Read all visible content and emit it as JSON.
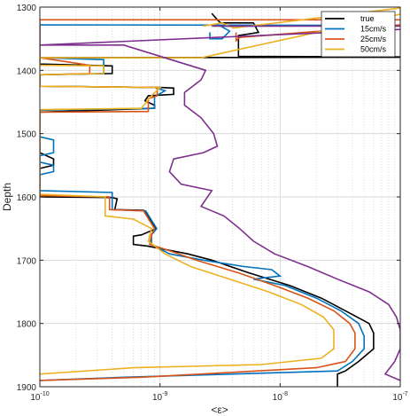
{
  "chart_data": {
    "type": "line",
    "title": "",
    "xlabel": "<ε>",
    "ylabel": "Depth",
    "xscale": "log",
    "xlim": [
      1e-10,
      1e-07
    ],
    "ylim": [
      1300,
      1900
    ],
    "y_reversed": true,
    "grid": true,
    "legend_position": "top-right",
    "x_tick_values": [
      1e-10,
      1e-09,
      1e-08,
      1e-07
    ],
    "x_tick_labels": [
      "10^-10",
      "10^-9",
      "10^-8",
      "10^-7"
    ],
    "y_ticks": [
      1300,
      1400,
      1500,
      1600,
      1700,
      1800,
      1900
    ],
    "series": [
      {
        "name": "true",
        "color": "#000000",
        "points": [
          [
            2.7e-09,
            1310
          ],
          [
            3e-09,
            1320
          ],
          [
            3.2e-09,
            1325
          ],
          [
            6e-09,
            1325
          ],
          [
            6.6e-09,
            1340
          ],
          [
            4.5e-09,
            1345
          ],
          [
            4.5e-09,
            1378
          ],
          [
            3.8e-07,
            1379
          ],
          [
            1e-10,
            1380
          ],
          [
            1e-10,
            1390
          ],
          [
            4e-10,
            1393
          ],
          [
            4e-10,
            1405
          ],
          [
            1e-10,
            1407
          ],
          [
            1e-10,
            1425
          ],
          [
            1e-09,
            1427
          ],
          [
            1.3e-09,
            1428
          ],
          [
            1.3e-09,
            1438
          ],
          [
            8e-10,
            1440
          ],
          [
            7.5e-10,
            1448
          ],
          [
            9e-10,
            1455
          ],
          [
            9e-10,
            1460
          ],
          [
            1e-10,
            1466
          ],
          [
            1e-10,
            1530
          ],
          [
            1.3e-10,
            1540
          ],
          [
            1.3e-10,
            1550
          ],
          [
            1e-10,
            1555
          ],
          [
            1e-10,
            1600
          ],
          [
            4e-10,
            1601
          ],
          [
            4.4e-10,
            1603
          ],
          [
            4.2e-10,
            1620
          ],
          [
            7.3e-10,
            1621
          ],
          [
            9.3e-10,
            1650
          ],
          [
            7e-10,
            1660
          ],
          [
            6e-10,
            1662
          ],
          [
            6e-10,
            1675
          ],
          [
            8e-10,
            1678
          ],
          [
            1.7e-09,
            1690
          ],
          [
            2.7e-09,
            1700
          ],
          [
            5.5e-09,
            1720
          ],
          [
            1.2e-08,
            1740
          ],
          [
            2.2e-08,
            1760
          ],
          [
            3.5e-08,
            1780
          ],
          [
            5.5e-08,
            1800
          ],
          [
            6e-08,
            1815
          ],
          [
            6e-08,
            1840
          ],
          [
            4.5e-08,
            1860
          ],
          [
            3.5e-08,
            1875
          ],
          [
            3e-08,
            1880
          ],
          [
            3e-08,
            1900
          ]
        ]
      },
      {
        "name": "15cm/s",
        "color": "#0072BD",
        "points": [
          [
            2.6e-09,
            1340
          ],
          [
            2.6e-09,
            1350
          ],
          [
            3.3e-09,
            1350
          ],
          [
            3.8e-09,
            1338
          ],
          [
            3.2e-09,
            1330
          ],
          [
            3.6e-07,
            1329
          ],
          [
            1e-10,
            1328
          ],
          [
            1e-10,
            1380
          ],
          [
            3.4e-10,
            1383
          ],
          [
            3.4e-10,
            1405
          ],
          [
            1e-10,
            1407
          ],
          [
            1e-10,
            1425
          ],
          [
            9e-10,
            1427
          ],
          [
            1.1e-09,
            1432
          ],
          [
            9e-10,
            1442
          ],
          [
            9e-10,
            1460
          ],
          [
            1e-10,
            1463
          ],
          [
            1e-10,
            1505
          ],
          [
            1.3e-10,
            1510
          ],
          [
            1.3e-10,
            1530
          ],
          [
            1e-10,
            1535
          ],
          [
            1e-10,
            1545
          ],
          [
            1.3e-10,
            1550
          ],
          [
            1.3e-10,
            1560
          ],
          [
            1e-10,
            1565
          ],
          [
            1e-10,
            1590
          ],
          [
            4e-10,
            1593
          ],
          [
            4e-10,
            1620
          ],
          [
            7.6e-10,
            1622
          ],
          [
            9.4e-10,
            1650
          ],
          [
            8.5e-10,
            1660
          ],
          [
            8.5e-10,
            1675
          ],
          [
            1.2e-09,
            1690
          ],
          [
            2.3e-09,
            1700
          ],
          [
            5e-09,
            1710
          ],
          [
            8.5e-09,
            1715
          ],
          [
            1e-08,
            1725
          ],
          [
            6e-09,
            1730
          ],
          [
            1.1e-08,
            1740
          ],
          [
            2e-08,
            1760
          ],
          [
            3.2e-08,
            1780
          ],
          [
            4.5e-08,
            1800
          ],
          [
            5e-08,
            1820
          ],
          [
            5e-08,
            1840
          ],
          [
            4e-08,
            1860
          ],
          [
            3e-08,
            1875
          ],
          [
            5e-10,
            1885
          ],
          [
            1e-10,
            1890
          ]
        ]
      },
      {
        "name": "25cm/s",
        "color": "#D95319",
        "points": [
          [
            4.3e-09,
            1340
          ],
          [
            4.3e-09,
            1353
          ],
          [
            4.6e-09,
            1348
          ],
          [
            3.5e-07,
            1320
          ],
          [
            1e-10,
            1320
          ],
          [
            1e-10,
            1380
          ],
          [
            2.6e-10,
            1392
          ],
          [
            2.6e-10,
            1405
          ],
          [
            1e-10,
            1407
          ],
          [
            1e-10,
            1425
          ],
          [
            9.5e-10,
            1427
          ],
          [
            9.5e-10,
            1440
          ],
          [
            8e-10,
            1445
          ],
          [
            8e-10,
            1465
          ],
          [
            1e-10,
            1466
          ],
          [
            1e-10,
            1598
          ],
          [
            3.8e-10,
            1600
          ],
          [
            3.8e-10,
            1620
          ],
          [
            7.3e-10,
            1622
          ],
          [
            9e-10,
            1650
          ],
          [
            8.5e-10,
            1660
          ],
          [
            8.2e-10,
            1675
          ],
          [
            1.2e-09,
            1685
          ],
          [
            2e-09,
            1700
          ],
          [
            4.5e-09,
            1720
          ],
          [
            9e-09,
            1740
          ],
          [
            1.7e-08,
            1760
          ],
          [
            2.8e-08,
            1780
          ],
          [
            3.8e-08,
            1800
          ],
          [
            4.2e-08,
            1815
          ],
          [
            4.2e-08,
            1840
          ],
          [
            3.5e-08,
            1860
          ],
          [
            2e-08,
            1870
          ],
          [
            7e-10,
            1885
          ],
          [
            1e-10,
            1890
          ]
        ]
      },
      {
        "name": "50cm/s",
        "color": "#EDB120",
        "points": [
          [
            2.3e-09,
            1330
          ],
          [
            3.3e-09,
            1325
          ],
          [
            4.1e-09,
            1333
          ],
          [
            3.2e-07,
            1290
          ],
          [
            2.2e-09,
            1380
          ],
          [
            1e-10,
            1380
          ],
          [
            1e-10,
            1392
          ],
          [
            3.4e-10,
            1393
          ],
          [
            3.4e-10,
            1405
          ],
          [
            1e-10,
            1407
          ],
          [
            1e-10,
            1425
          ],
          [
            1e-09,
            1427
          ],
          [
            8.5e-10,
            1440
          ],
          [
            7e-10,
            1460
          ],
          [
            1e-10,
            1462
          ],
          [
            1e-10,
            1596
          ],
          [
            3.5e-10,
            1600
          ],
          [
            3.5e-10,
            1630
          ],
          [
            6e-10,
            1635
          ],
          [
            8.5e-10,
            1650
          ],
          [
            8e-10,
            1670
          ],
          [
            1.1e-09,
            1690
          ],
          [
            1.8e-09,
            1710
          ],
          [
            3.8e-09,
            1730
          ],
          [
            8e-09,
            1750
          ],
          [
            1.5e-08,
            1770
          ],
          [
            2.3e-08,
            1790
          ],
          [
            2.8e-08,
            1810
          ],
          [
            2.8e-08,
            1840
          ],
          [
            2.2e-08,
            1855
          ],
          [
            7e-09,
            1865
          ],
          [
            6e-10,
            1870
          ],
          [
            1e-10,
            1880
          ]
        ]
      },
      {
        "name": "",
        "color": "#7E2F8E",
        "points": [
          [
            2.7e-09,
            1330
          ],
          [
            4.4e-07,
            1330
          ],
          [
            1e-10,
            1360
          ],
          [
            5e-10,
            1360
          ],
          [
            2.4e-09,
            1400
          ],
          [
            2.2e-09,
            1415
          ],
          [
            1.6e-09,
            1435
          ],
          [
            1.6e-09,
            1455
          ],
          [
            2.2e-09,
            1475
          ],
          [
            2.8e-09,
            1500
          ],
          [
            3e-09,
            1520
          ],
          [
            2.3e-09,
            1530
          ],
          [
            1.3e-09,
            1540
          ],
          [
            1.2e-09,
            1560
          ],
          [
            1.5e-09,
            1580
          ],
          [
            2.7e-09,
            1590
          ],
          [
            2.2e-09,
            1615
          ],
          [
            3.4e-09,
            1630
          ],
          [
            4.6e-09,
            1650
          ],
          [
            6e-09,
            1670
          ],
          [
            9e-09,
            1690
          ],
          [
            1.7e-08,
            1710
          ],
          [
            3e-08,
            1730
          ],
          [
            5.5e-08,
            1750
          ],
          [
            8e-08,
            1770
          ],
          [
            9.3e-08,
            1790
          ],
          [
            1e-07,
            1810
          ],
          [
            1e-07,
            1840
          ],
          [
            9e-08,
            1860
          ],
          [
            7.5e-08,
            1880
          ],
          [
            1e-07,
            1890
          ]
        ]
      }
    ]
  }
}
